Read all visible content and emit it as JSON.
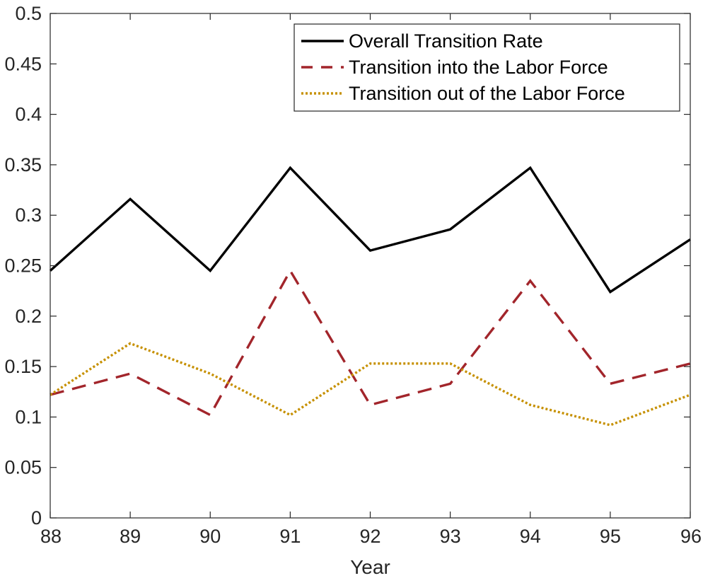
{
  "chart_data": {
    "type": "line",
    "title": "",
    "xlabel": "Year",
    "ylabel": "",
    "x": [
      88,
      89,
      90,
      91,
      92,
      93,
      94,
      95,
      96
    ],
    "xlim": [
      88,
      96
    ],
    "ylim": [
      0,
      0.5
    ],
    "xticks": [
      "88",
      "89",
      "90",
      "91",
      "92",
      "93",
      "94",
      "95",
      "96"
    ],
    "yticks": [
      "0",
      "0.05",
      "0.1",
      "0.15",
      "0.2",
      "0.25",
      "0.3",
      "0.35",
      "0.4",
      "0.45",
      "0.5"
    ],
    "grid": false,
    "legend_position": "top-right",
    "series": [
      {
        "name": "Overall Transition Rate",
        "values": [
          0.245,
          0.316,
          0.245,
          0.347,
          0.265,
          0.286,
          0.347,
          0.224,
          0.276
        ],
        "color": "#000000",
        "style": "solid"
      },
      {
        "name": "Transition into the Labor Force",
        "values": [
          0.122,
          0.143,
          0.102,
          0.245,
          0.112,
          0.133,
          0.235,
          0.133,
          0.153
        ],
        "color": "#a2252b",
        "style": "dashed"
      },
      {
        "name": "Transition out of the Labor Force",
        "values": [
          0.122,
          0.173,
          0.143,
          0.102,
          0.153,
          0.153,
          0.112,
          0.092,
          0.122
        ],
        "color": "#c69000",
        "style": "dotted"
      }
    ]
  }
}
